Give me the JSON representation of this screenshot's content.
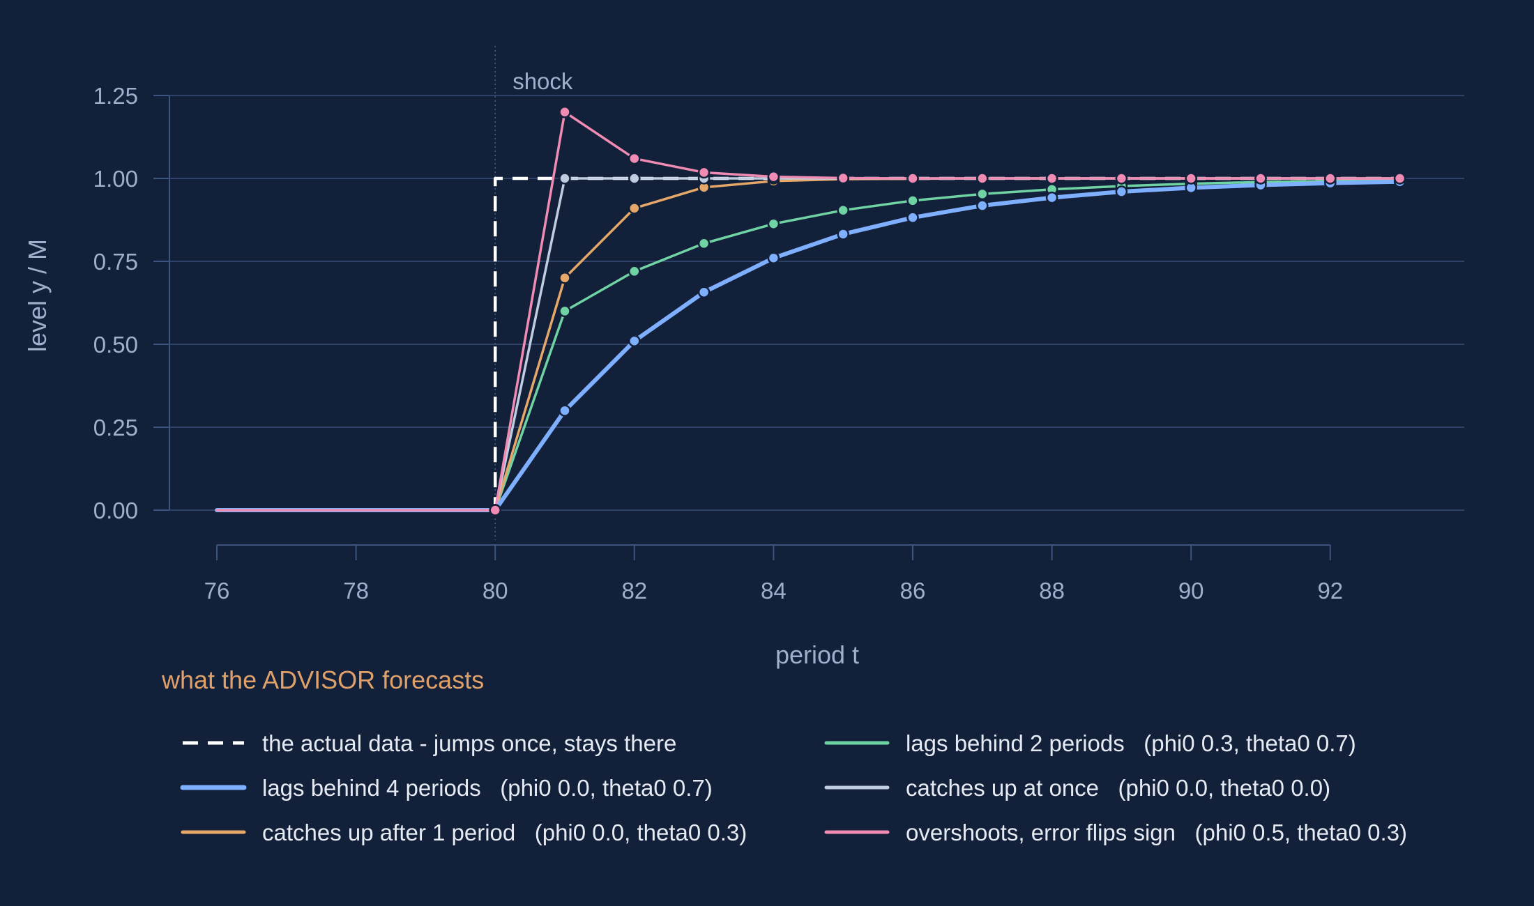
{
  "chart_data": {
    "type": "line",
    "title": "",
    "xlabel": "period t",
    "ylabel": "level  y / M",
    "xlim": [
      75,
      94
    ],
    "ylim": [
      -0.12,
      1.3
    ],
    "x_ticks": [
      76,
      78,
      80,
      82,
      84,
      86,
      88,
      90,
      92
    ],
    "y_ticks": [
      0.0,
      0.25,
      0.5,
      0.75,
      1.0,
      1.25
    ],
    "y_tick_labels": [
      "0.00",
      "0.25",
      "0.50",
      "0.75",
      "1.00",
      "1.25"
    ],
    "grid": "horizontal",
    "annotation": {
      "label": "shock",
      "x": 80
    },
    "legend": {
      "title": "what the ADVISOR forecasts",
      "placement": "bottom",
      "columns": 2
    },
    "series": [
      {
        "name": "the actual data - jumps once, stays there",
        "color": "#ffffff",
        "style": "dashed",
        "markers": false,
        "step": true,
        "x": [
          76,
          77,
          78,
          79,
          80,
          81,
          82,
          83,
          84,
          85,
          86,
          87,
          88,
          89,
          90,
          91,
          92,
          93
        ],
        "y": [
          0,
          0,
          0,
          0,
          1,
          1,
          1,
          1,
          1,
          1,
          1,
          1,
          1,
          1,
          1,
          1,
          1,
          1
        ]
      },
      {
        "name": "lags behind 4 periods   (phi0 0.0, theta0 0.7)",
        "color": "#7eb0ff",
        "style": "solid",
        "width": "thick",
        "markers": true,
        "x": [
          76,
          77,
          78,
          79,
          80,
          81,
          82,
          83,
          84,
          85,
          86,
          87,
          88,
          89,
          90,
          91,
          92,
          93
        ],
        "y": [
          0,
          0,
          0,
          0,
          0,
          0.3,
          0.51,
          0.657,
          0.76,
          0.832,
          0.882,
          0.918,
          0.942,
          0.96,
          0.972,
          0.98,
          0.986,
          0.99
        ]
      },
      {
        "name": "catches up after 1 period   (phi0 0.0, theta0 0.3)",
        "color": "#e6a868",
        "style": "solid",
        "markers": true,
        "x": [
          76,
          77,
          78,
          79,
          80,
          81,
          82,
          83,
          84,
          85,
          86,
          87,
          88,
          89,
          90,
          91,
          92,
          93
        ],
        "y": [
          0,
          0,
          0,
          0,
          0,
          0.7,
          0.91,
          0.973,
          0.992,
          0.998,
          0.999,
          1.0,
          1.0,
          1.0,
          1.0,
          1.0,
          1.0,
          1.0
        ]
      },
      {
        "name": "lags behind 2 periods   (phi0 0.3, theta0 0.7)",
        "color": "#6fd3a4",
        "style": "solid",
        "markers": true,
        "x": [
          76,
          77,
          78,
          79,
          80,
          81,
          82,
          83,
          84,
          85,
          86,
          87,
          88,
          89,
          90,
          91,
          92,
          93
        ],
        "y": [
          0,
          0,
          0,
          0,
          0,
          0.6,
          0.72,
          0.804,
          0.863,
          0.904,
          0.933,
          0.953,
          0.967,
          0.977,
          0.984,
          0.989,
          0.992,
          0.994
        ]
      },
      {
        "name": "catches up at once   (phi0 0.0, theta0 0.0)",
        "color": "#c0cde0",
        "style": "solid",
        "markers": true,
        "x": [
          76,
          77,
          78,
          79,
          80,
          81,
          82,
          83,
          84,
          85,
          86,
          87,
          88,
          89,
          90,
          91,
          92,
          93
        ],
        "y": [
          0,
          0,
          0,
          0,
          0,
          1.0,
          1.0,
          1.0,
          1.0,
          1.0,
          1.0,
          1.0,
          1.0,
          1.0,
          1.0,
          1.0,
          1.0,
          1.0
        ]
      },
      {
        "name": "overshoots, error flips sign   (phi0 0.5, theta0 0.3)",
        "color": "#f08cb4",
        "style": "solid",
        "markers": true,
        "x": [
          76,
          77,
          78,
          79,
          80,
          81,
          82,
          83,
          84,
          85,
          86,
          87,
          88,
          89,
          90,
          91,
          92,
          93
        ],
        "y": [
          0,
          0,
          0,
          0,
          0,
          1.2,
          1.06,
          1.018,
          1.005,
          1.001,
          1.0,
          1.0,
          1.0,
          1.0,
          1.0,
          1.0,
          1.0,
          1.0
        ]
      }
    ]
  }
}
